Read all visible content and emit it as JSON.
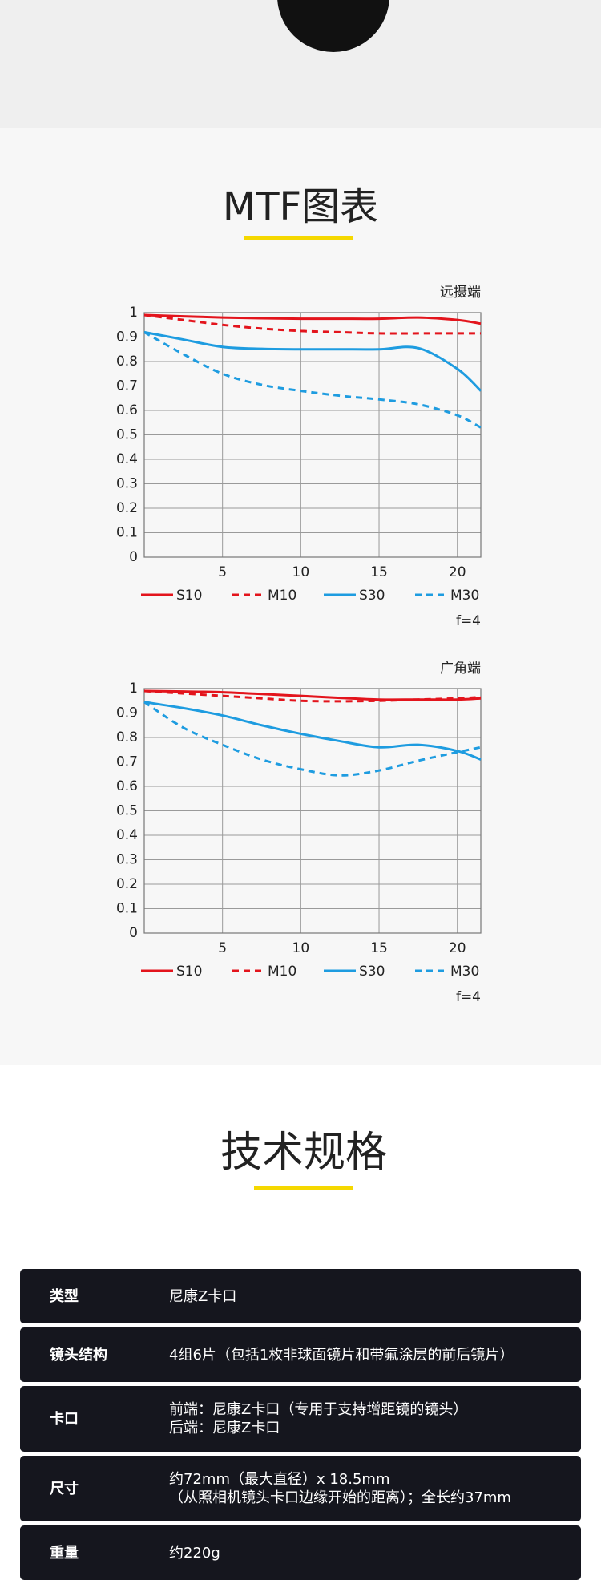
{
  "mtf": {
    "title": "MTF图表"
  },
  "chart_data": [
    {
      "type": "line",
      "title": "远摄端",
      "annotation": "f=4",
      "x": [
        0,
        2.5,
        5,
        7.5,
        10,
        12.5,
        15,
        17.5,
        20,
        21.5
      ],
      "xlim": [
        0,
        21.5
      ],
      "xticks": [
        5,
        10,
        15,
        20
      ],
      "ylim": [
        0,
        1
      ],
      "yticks": [
        0,
        0.1,
        0.2,
        0.3,
        0.4,
        0.5,
        0.6,
        0.7,
        0.8,
        0.9,
        1
      ],
      "grid": true,
      "series": [
        {
          "name": "S10",
          "color": "#e3141c",
          "style": "solid",
          "values": [
            0.99,
            0.985,
            0.98,
            0.977,
            0.975,
            0.975,
            0.975,
            0.98,
            0.97,
            0.955
          ]
        },
        {
          "name": "M10",
          "color": "#e3141c",
          "style": "dashed",
          "values": [
            0.99,
            0.97,
            0.95,
            0.935,
            0.925,
            0.92,
            0.915,
            0.915,
            0.915,
            0.915
          ]
        },
        {
          "name": "S30",
          "color": "#1e9ce0",
          "style": "solid",
          "values": [
            0.92,
            0.89,
            0.86,
            0.852,
            0.85,
            0.85,
            0.85,
            0.855,
            0.77,
            0.68
          ]
        },
        {
          "name": "M30",
          "color": "#1e9ce0",
          "style": "dashed",
          "values": [
            0.92,
            0.83,
            0.75,
            0.705,
            0.68,
            0.66,
            0.645,
            0.625,
            0.58,
            0.53
          ]
        }
      ]
    },
    {
      "type": "line",
      "title": "广角端",
      "annotation": "f=4",
      "x": [
        0,
        2.5,
        5,
        7.5,
        10,
        12.5,
        15,
        17.5,
        20,
        21.5
      ],
      "xlim": [
        0,
        21.5
      ],
      "xticks": [
        5,
        10,
        15,
        20
      ],
      "ylim": [
        0,
        1
      ],
      "yticks": [
        0,
        0.1,
        0.2,
        0.3,
        0.4,
        0.5,
        0.6,
        0.7,
        0.8,
        0.9,
        1
      ],
      "grid": true,
      "series": [
        {
          "name": "S10",
          "color": "#e3141c",
          "style": "solid",
          "values": [
            0.99,
            0.988,
            0.985,
            0.978,
            0.97,
            0.962,
            0.955,
            0.955,
            0.955,
            0.96
          ]
        },
        {
          "name": "M10",
          "color": "#e3141c",
          "style": "dashed",
          "values": [
            0.99,
            0.98,
            0.97,
            0.96,
            0.95,
            0.948,
            0.95,
            0.955,
            0.96,
            0.965
          ]
        },
        {
          "name": "S30",
          "color": "#1e9ce0",
          "style": "solid",
          "values": [
            0.945,
            0.92,
            0.89,
            0.85,
            0.815,
            0.785,
            0.76,
            0.77,
            0.745,
            0.71
          ]
        },
        {
          "name": "M30",
          "color": "#1e9ce0",
          "style": "dashed",
          "values": [
            0.945,
            0.84,
            0.77,
            0.71,
            0.67,
            0.645,
            0.665,
            0.705,
            0.74,
            0.76
          ]
        }
      ]
    }
  ],
  "specs": {
    "title": "技术规格",
    "rows": [
      {
        "label": "类型",
        "lines": [
          "尼康Z卡口"
        ]
      },
      {
        "label": "镜头结构",
        "lines": [
          "4组6片（包括1枚非球面镜片和带氟涂层的前后镜片）"
        ]
      },
      {
        "label": "卡口",
        "lines": [
          "前端：尼康Z卡口（专用于支持增距镜的镜头）",
          "后端：尼康Z卡口"
        ]
      },
      {
        "label": "尺寸",
        "lines": [
          "约72mm（最大直径）x 18.5mm",
          "（从照相机镜头卡口边缘开始的距离）；全长约37mm"
        ]
      },
      {
        "label": "重量",
        "lines": [
          "约220g"
        ]
      }
    ]
  }
}
